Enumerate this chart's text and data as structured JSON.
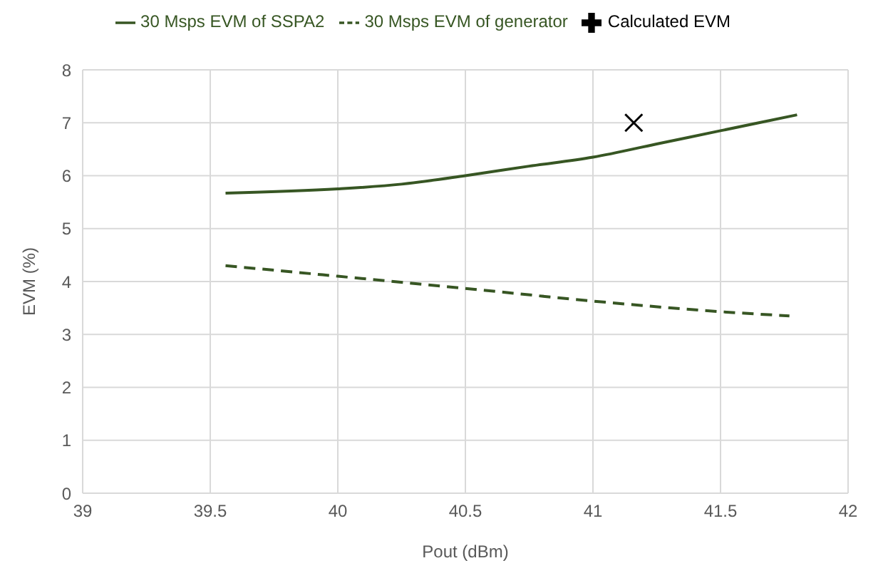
{
  "chart_data": {
    "type": "line",
    "xlabel": "Pout (dBm)",
    "ylabel": "EVM (%)",
    "xlim": [
      39,
      42
    ],
    "xticks": [
      39,
      39.5,
      40,
      40.5,
      41,
      41.5,
      42
    ],
    "ylim": [
      0,
      8
    ],
    "yticks": [
      0,
      1,
      2,
      3,
      4,
      5,
      6,
      7,
      8
    ],
    "grid": true,
    "legend": "top",
    "marker": "none",
    "series": [
      {
        "name": "30 Msps EVM of SSPA2",
        "color": "#375623",
        "line_style": "solid",
        "x": [
          39.56,
          40,
          40.25,
          40.5,
          40.75,
          41,
          41.25,
          41.5,
          41.8
        ],
        "values": [
          5.67,
          5.75,
          5.84,
          6.0,
          6.18,
          6.35,
          6.6,
          6.85,
          7.15
        ]
      },
      {
        "name": "30 Msps EVM of generator",
        "color": "#375623",
        "line_style": "dashed",
        "x": [
          39.56,
          40,
          40.5,
          41,
          41.5,
          41.77
        ],
        "values": [
          4.3,
          4.1,
          3.87,
          3.63,
          3.43,
          3.35
        ]
      },
      {
        "name": "Calculated EVM",
        "type": "scatter",
        "marker": "cross",
        "color": "#000000",
        "x": [
          41.16
        ],
        "values": [
          7.0
        ]
      }
    ]
  }
}
